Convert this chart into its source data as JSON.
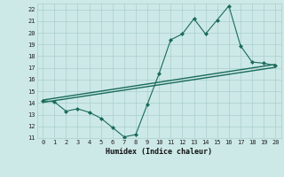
{
  "x": [
    0,
    1,
    2,
    3,
    4,
    5,
    6,
    7,
    8,
    9,
    10,
    11,
    12,
    13,
    14,
    15,
    16,
    17,
    18,
    19,
    20
  ],
  "y_curve": [
    14.2,
    14.1,
    13.3,
    13.5,
    13.2,
    12.7,
    11.9,
    11.1,
    11.3,
    13.9,
    16.5,
    19.4,
    19.9,
    21.2,
    19.9,
    21.1,
    22.3,
    18.9,
    17.5,
    17.4,
    17.2
  ],
  "line1_x": [
    0,
    20
  ],
  "line1_y": [
    14.25,
    17.3
  ],
  "line2_x": [
    0,
    20
  ],
  "line2_y": [
    14.05,
    17.05
  ],
  "xlabel": "Humidex (Indice chaleur)",
  "ylim": [
    11,
    22.5
  ],
  "xlim": [
    -0.5,
    20.5
  ],
  "yticks": [
    11,
    12,
    13,
    14,
    15,
    16,
    17,
    18,
    19,
    20,
    21,
    22
  ],
  "xticks": [
    0,
    1,
    2,
    3,
    4,
    5,
    6,
    7,
    8,
    9,
    10,
    11,
    12,
    13,
    14,
    15,
    16,
    17,
    18,
    19,
    20
  ],
  "line_color": "#1a6b5a",
  "bg_color": "#cce9e7",
  "grid_color": "#aacfcc"
}
